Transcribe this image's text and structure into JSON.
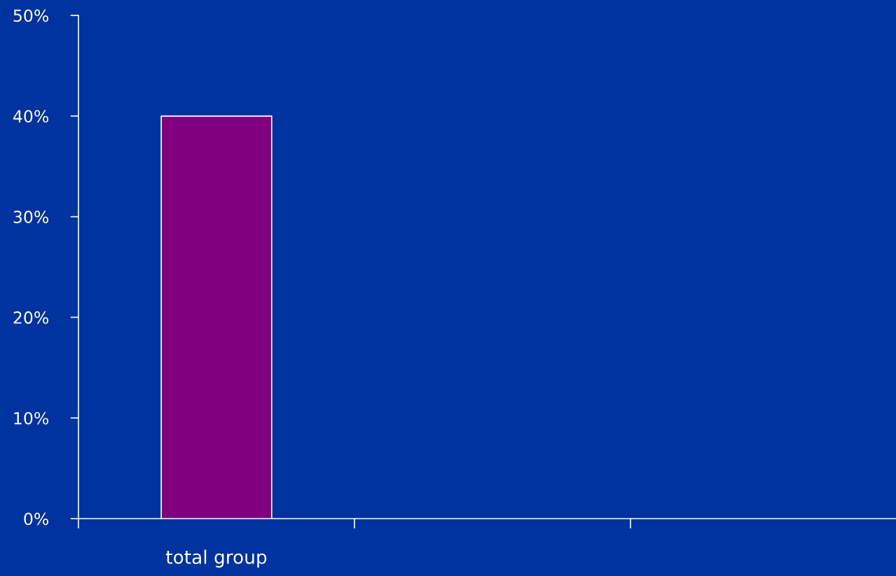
{
  "chart_data": {
    "type": "bar",
    "categories": [
      "total group",
      null,
      null
    ],
    "series": [
      {
        "color": "#800080",
        "values": [
          40,
          null,
          null
        ]
      }
    ],
    "ylim": [
      0,
      50
    ],
    "yticks": [
      {
        "value": 0,
        "label": "0%"
      },
      {
        "value": 10,
        "label": "10%"
      },
      {
        "value": 20,
        "label": "20%"
      },
      {
        "value": 30,
        "label": "30%"
      },
      {
        "value": 40,
        "label": "40%"
      },
      {
        "value": 50,
        "label": "50%"
      }
    ],
    "grid": false,
    "legend": false
  }
}
